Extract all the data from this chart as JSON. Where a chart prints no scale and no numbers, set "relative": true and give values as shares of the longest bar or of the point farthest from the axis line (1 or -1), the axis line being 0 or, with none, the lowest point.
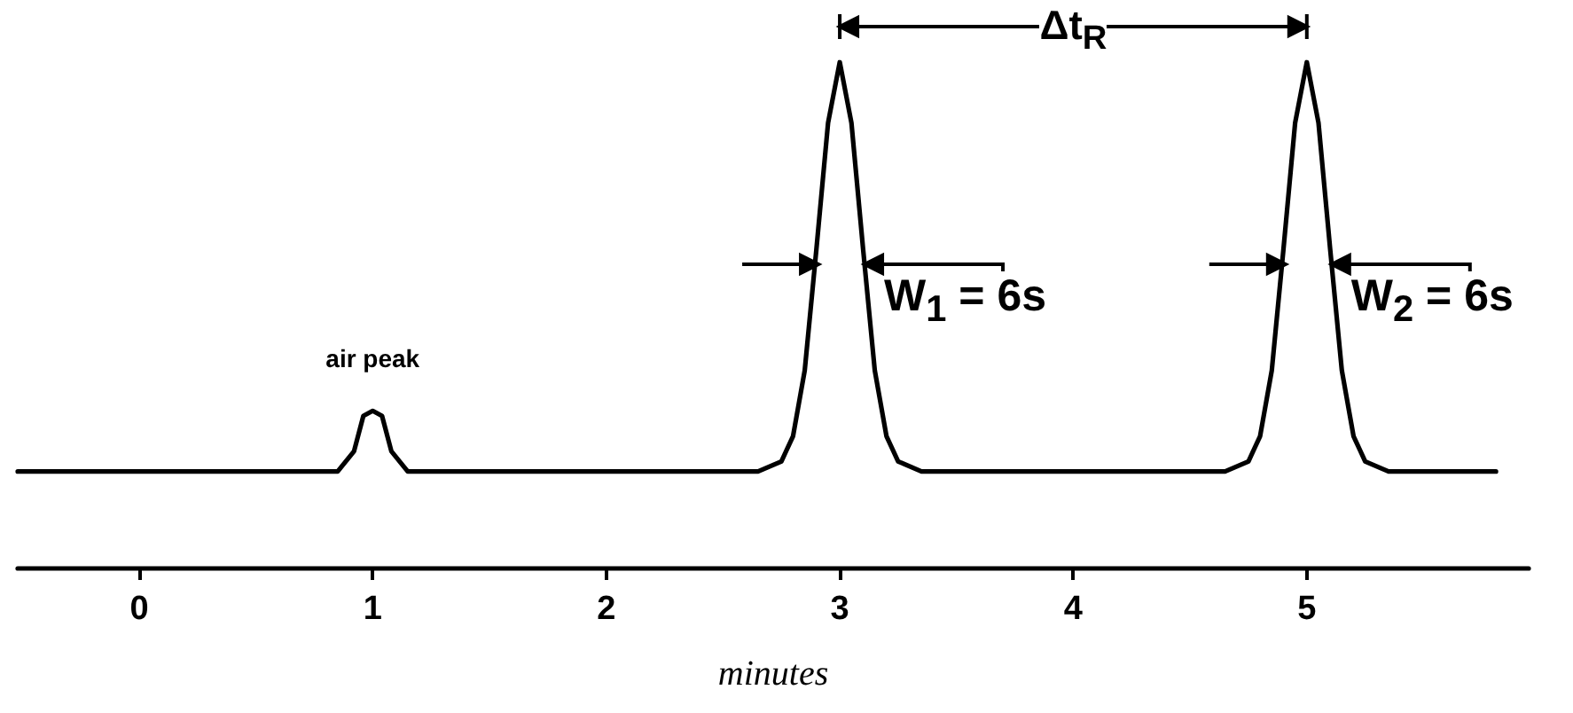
{
  "chart_data": {
    "type": "line",
    "relative": true,
    "xlabel": "minutes",
    "xlim": [
      -0.52,
      5.95
    ],
    "xticks": [
      0,
      1,
      2,
      3,
      4,
      5
    ],
    "tick_labels": "x",
    "grid": false,
    "marker": "none",
    "line_style": "solid",
    "series": [
      {
        "color": "#000000",
        "x": [
          -0.52,
          0.85,
          0.92,
          0.96,
          1.0,
          1.04,
          1.08,
          1.15,
          2.65,
          2.75,
          2.8,
          2.85,
          2.9,
          2.95,
          3.0,
          3.05,
          3.1,
          3.15,
          3.2,
          3.25,
          3.35,
          4.65,
          4.75,
          4.8,
          4.85,
          4.9,
          4.95,
          5.0,
          5.05,
          5.1,
          5.15,
          5.2,
          5.25,
          5.35,
          5.81
        ],
        "values": [
          0.19,
          0.19,
          0.23,
          0.3,
          0.31,
          0.3,
          0.23,
          0.19,
          0.19,
          0.21,
          0.26,
          0.39,
          0.63,
          0.88,
          1.0,
          0.88,
          0.63,
          0.39,
          0.26,
          0.21,
          0.19,
          0.19,
          0.21,
          0.26,
          0.39,
          0.63,
          0.88,
          1.0,
          0.88,
          0.63,
          0.39,
          0.26,
          0.21,
          0.19,
          0.19
        ]
      }
    ],
    "annotations": [
      {
        "text": "air peak",
        "x": 1,
        "y": 0.31
      },
      "Δt$_{R}$",
      "W$_{1}$ = 6s",
      "W$_{2}$ = 6s"
    ]
  }
}
